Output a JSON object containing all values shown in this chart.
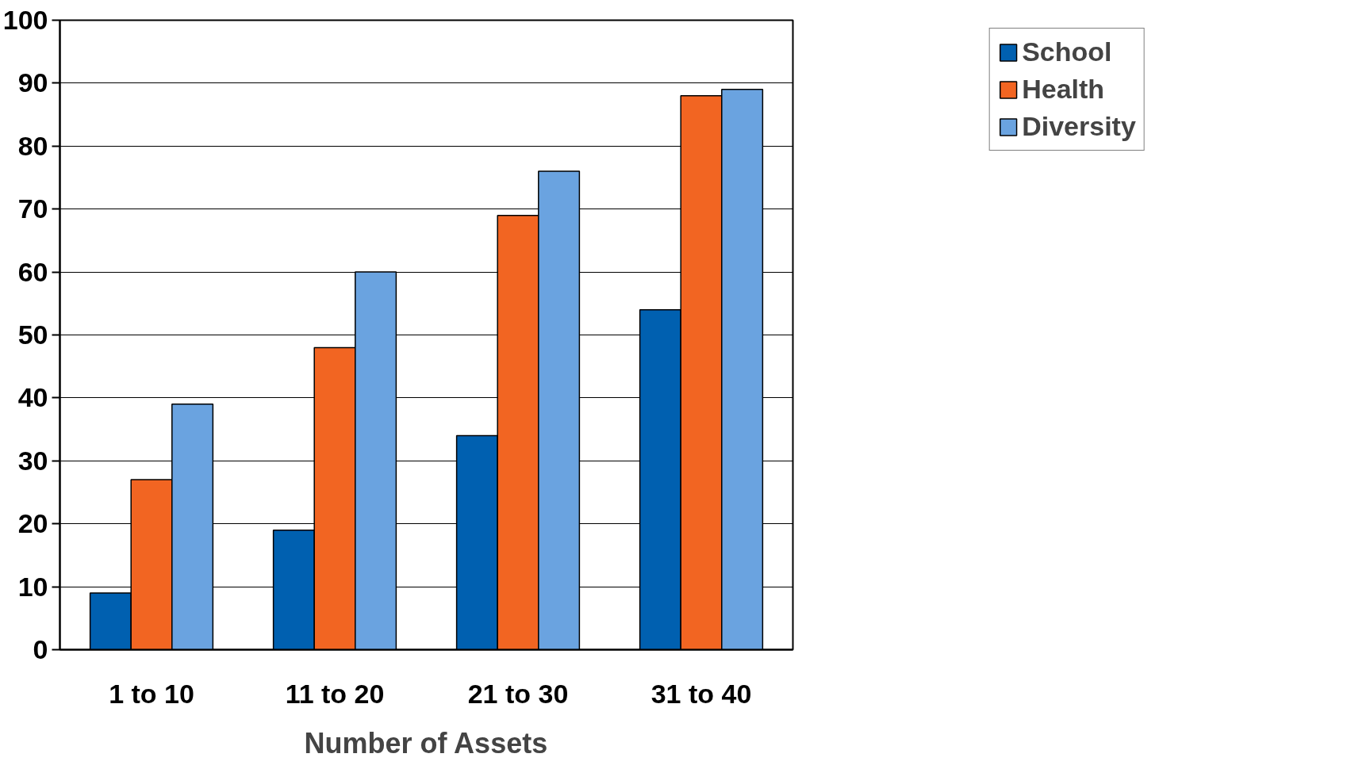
{
  "chart_data": {
    "type": "bar",
    "xlabel": "Number of Assets",
    "categories": [
      "1 to 10",
      "11 to 20",
      "21 to 30",
      "31 to 40"
    ],
    "series": [
      {
        "name": "School",
        "color": "#0060b0",
        "values": [
          9,
          19,
          34,
          54
        ]
      },
      {
        "name": "Health",
        "color": "#f26522",
        "values": [
          27,
          48,
          69,
          88
        ]
      },
      {
        "name": "Diversity",
        "color": "#6aa3e0",
        "values": [
          39,
          60,
          76,
          89
        ]
      }
    ],
    "ylim": [
      0,
      100
    ],
    "yticks": [
      0,
      10,
      20,
      30,
      40,
      50,
      60,
      70,
      80,
      90,
      100
    ],
    "grid": "y",
    "legend": "right"
  }
}
